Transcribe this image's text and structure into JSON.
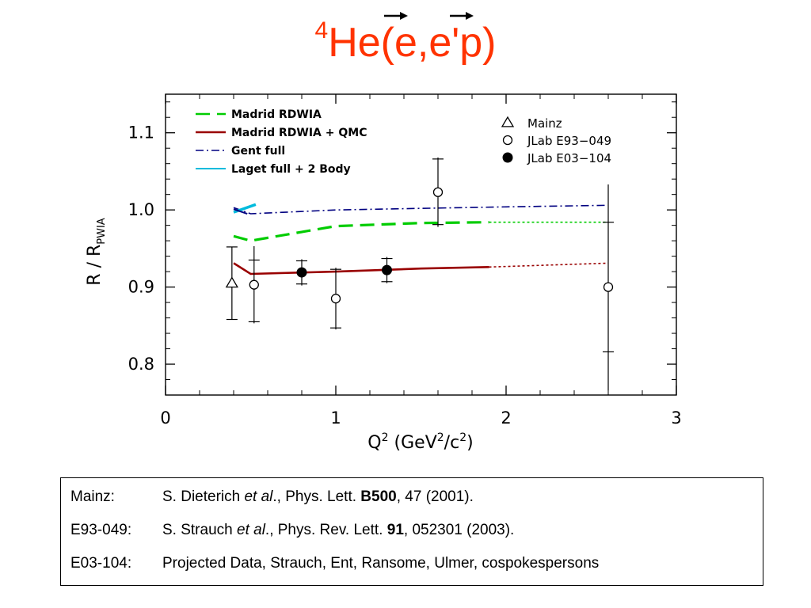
{
  "title": {
    "sup": "4",
    "base": "He",
    "open": "(",
    "e1": "e",
    "comma": ",",
    "e2": "e'",
    "p": "p",
    "close": ")"
  },
  "colors": {
    "title": "#ff3300",
    "madrid_rdwia": "#00cc00",
    "madrid_qmc": "#990000",
    "gent": "#000080",
    "laget": "#00bbdd"
  },
  "chart_data": {
    "type": "scatter",
    "xlabel": "Q² (GeV²/c²)",
    "ylabel": "R / R_PWIA",
    "ylabel_parts": {
      "r": "R",
      "slash": "/",
      "rsub_main": "R",
      "rsub": "PWIA"
    },
    "xlabel_parts": {
      "q": "Q",
      "q_exp": "2",
      "open": "(GeV",
      "gev_exp": "2",
      "mid": "/c",
      "c_exp": "2",
      "close": ")"
    },
    "xlim": [
      0,
      3
    ],
    "ylim": [
      0.76,
      1.15
    ],
    "x_ticks": [
      0,
      1,
      2,
      3
    ],
    "x_tick_labels": [
      "0",
      "1",
      "2",
      "3"
    ],
    "y_ticks": [
      0.8,
      0.9,
      1.0,
      1.1
    ],
    "y_tick_labels": [
      "0.8",
      "0.9",
      "1.0",
      "1.1"
    ],
    "grid": false,
    "legend_lines": [
      {
        "key": "madrid_rdwia",
        "label": "Madrid  RDWIA",
        "style": "dashed"
      },
      {
        "key": "madrid_qmc",
        "label": "Madrid  RDWIA + QMC",
        "style": "solid"
      },
      {
        "key": "gent",
        "label": "Gent  full",
        "style": "dashdot"
      },
      {
        "key": "laget",
        "label": "Laget  full + 2  Body",
        "style": "solid"
      }
    ],
    "legend_points": [
      {
        "key": "mainz",
        "label": "Mainz",
        "marker": "triangle"
      },
      {
        "key": "e93",
        "label": "JLab  E93−049",
        "marker": "open-circle"
      },
      {
        "key": "e03",
        "label": "JLab  E03−104",
        "marker": "filled-circle"
      }
    ],
    "curves": [
      {
        "key": "madrid_rdwia",
        "x": [
          0.4,
          0.5,
          1.0,
          1.5,
          1.9
        ],
        "y": [
          0.966,
          0.96,
          0.979,
          0.983,
          0.984
        ],
        "ext_x": [
          1.9,
          2.6
        ],
        "ext_y": [
          0.984,
          0.984
        ]
      },
      {
        "key": "madrid_qmc",
        "x": [
          0.4,
          0.5,
          1.0,
          1.5,
          1.9
        ],
        "y": [
          0.931,
          0.917,
          0.92,
          0.924,
          0.926
        ],
        "ext_x": [
          1.9,
          2.6
        ],
        "ext_y": [
          0.926,
          0.931
        ]
      },
      {
        "key": "gent",
        "x": [
          0.4,
          0.5,
          1.0,
          1.5,
          2.0,
          2.6
        ],
        "y": [
          1.003,
          0.995,
          1.0,
          1.002,
          1.004,
          1.006
        ]
      },
      {
        "key": "laget",
        "x": [
          0.4,
          0.53
        ],
        "y": [
          0.997,
          1.007
        ]
      }
    ],
    "series": [
      {
        "key": "mainz",
        "marker": "triangle",
        "points": [
          {
            "x": 0.39,
            "y": 0.905,
            "yerr_low": 0.858,
            "yerr_high": 0.952,
            "ticks": [
              0.858,
              0.952
            ]
          }
        ]
      },
      {
        "key": "e93",
        "marker": "open-circle",
        "points": [
          {
            "x": 0.52,
            "y": 0.903,
            "yerr_low": 0.853,
            "yerr_high": 0.953,
            "ticks": [
              0.855,
              0.935
            ]
          },
          {
            "x": 1.0,
            "y": 0.885,
            "yerr_low": 0.845,
            "yerr_high": 0.925,
            "ticks": [
              0.847,
              0.923
            ]
          },
          {
            "x": 1.6,
            "y": 1.023,
            "yerr_low": 0.978,
            "yerr_high": 1.068,
            "ticks": [
              0.981,
              1.066
            ]
          },
          {
            "x": 2.6,
            "y": 0.9,
            "yerr_low": 0.766,
            "yerr_high": 1.033,
            "ticks": [
              0.816,
              0.984
            ]
          }
        ]
      },
      {
        "key": "e03",
        "marker": "filled-circle",
        "points": [
          {
            "x": 0.8,
            "y": 0.919,
            "yerr_low": 0.902,
            "yerr_high": 0.936,
            "ticks": [
              0.904,
              0.934
            ]
          },
          {
            "x": 1.3,
            "y": 0.922,
            "yerr_low": 0.905,
            "yerr_high": 0.939,
            "ticks": [
              0.907,
              0.937
            ]
          }
        ]
      }
    ]
  },
  "references": [
    {
      "key": "Mainz:",
      "parts": [
        {
          "t": "S. Dieterich ",
          "s": "n"
        },
        {
          "t": "et al",
          "s": "i"
        },
        {
          "t": "., Phys. Lett. ",
          "s": "n"
        },
        {
          "t": "B500",
          "s": "b"
        },
        {
          "t": ", 47 (2001).",
          "s": "n"
        }
      ]
    },
    {
      "key": "E93-049:",
      "parts": [
        {
          "t": "S. Strauch ",
          "s": "n"
        },
        {
          "t": "et al",
          "s": "i"
        },
        {
          "t": "., Phys. Rev. Lett. ",
          "s": "n"
        },
        {
          "t": "91",
          "s": "b"
        },
        {
          "t": ", 052301 (2003).",
          "s": "n"
        }
      ]
    },
    {
      "key": "E03-104:",
      "parts": [
        {
          "t": "Projected Data, Strauch, Ent, Ransome, Ulmer, cospokespersons",
          "s": "n"
        }
      ]
    }
  ]
}
